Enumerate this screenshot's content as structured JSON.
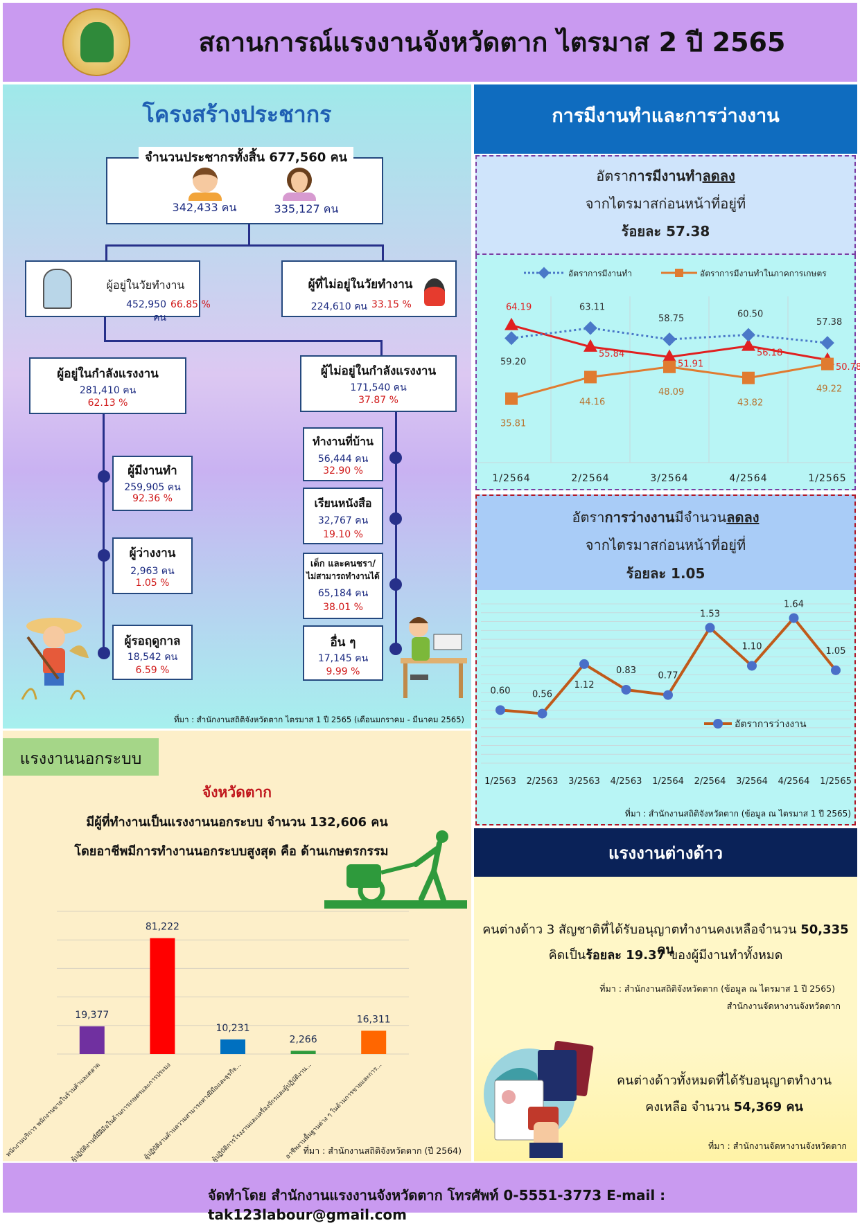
{
  "header": {
    "title": "สถานการณ์แรงงานจังหวัดตาก ไตรมาส 2 ปี 2565"
  },
  "population": {
    "title": "โครงสร้างประชากร",
    "total": "จำนวนประชากรทั้งสิ้น 677,560 คน",
    "male": "342,433 คน",
    "female": "335,127 คน",
    "working_age": {
      "label": "ผู้อยู่ในวัยทำงาน",
      "num": "452,950 คน",
      "pct": "66.85 %"
    },
    "non_working_age": {
      "label": "ผู้ที่ไม่อยู่ในวัยทำงาน",
      "num": "224,610 คน",
      "pct": "33.15 %"
    },
    "in_labour_force": {
      "label": "ผู้อยู่ในกำลังแรงงาน",
      "num": "281,410 คน",
      "pct": "62.13 %"
    },
    "not_in_labour_force": {
      "label": "ผู้ไม่อยู่ในกำลังแรงงาน",
      "num": "171,540 คน",
      "pct": "37.87 %"
    },
    "employed": {
      "label": "ผู้มีงานทำ",
      "num": "259,905 คน",
      "pct": "92.36 %"
    },
    "unemployed": {
      "label": "ผู้ว่างงาน",
      "num": "2,963 คน",
      "pct": "1.05 %"
    },
    "seasonal": {
      "label": "ผู้รอฤดูกาล",
      "num": "18,542 คน",
      "pct": "6.59 %"
    },
    "housework": {
      "label": "ทำงานที่บ้าน",
      "num": "56,444 คน",
      "pct": "32.90 %"
    },
    "studying": {
      "label": "เรียนหนังสือ",
      "num": "32,767 คน",
      "pct": "19.10 %"
    },
    "children_elderly": {
      "label1": "เด็ก และคนชรา/",
      "label2": "ไม่สามารถทำงานได้",
      "num": "65,184 คน",
      "pct": "38.01 %"
    },
    "others": {
      "label": "อื่น ๆ",
      "num": "17,145 คน",
      "pct": "9.99 %"
    },
    "source": "ที่มา : สำนักงานสถิติจังหวัดตาก ไตรมาส 1 ปี 2565 (เดือนมกราคม - มีนาคม 2565)"
  },
  "employment": {
    "title": "การมีงานทำและการว่างงาน",
    "emp_rate": {
      "line1_pre": "อัตรา",
      "line1_bold": "การมีงานทำ",
      "line1_under": "ลดลง",
      "line2": "จากไตรมาสก่อนหน้าที่อยู่ที่",
      "line3": "ร้อยละ 57.38"
    },
    "unemp_rate": {
      "line1_pre": "อัตรา",
      "line1_bold": "การว่างงาน",
      "line1_mid": "มีจำนวน",
      "line1_under": "ลดลง",
      "line2": "จากไตรมาสก่อนหน้าที่อยู่ที่",
      "line3": "ร้อยละ 1.05"
    },
    "unemp_source": "ที่มา : สำนักงานสถิติจังหวัดตาก (ข้อมูล ณ ไตรมาส 1 ปี 2565)"
  },
  "informal": {
    "tag": "แรงงานนอกระบบ",
    "province": "จังหวัดตาก",
    "line1": "มีผู้ที่ทำงานเป็นแรงงานนอกระบบ จำนวน 132,606 คน",
    "line2": "โดยอาชีพมีการทำงานนอกระบบสูงสุด คือ ด้านเกษตรกรรม",
    "source": "ที่มา : สำนักงานสถิติจังหวัดตาก (ปี 2564)"
  },
  "foreign": {
    "title": "แรงงานต่างด้าว",
    "line1_pre": "คนต่างด้าว 3 สัญชาติที่ได้รับอนุญาตทำงานคงเหลือจำนวน ",
    "line1_bold": "50,335 คน",
    "line2_pre": "คิดเป็น",
    "line2_bold": "ร้อยละ 19.37",
    "line2_post": " ของผู้มีงานทำทั้งหมด",
    "source1": "ที่มา : สำนักงานสถิติจังหวัดตาก (ข้อมูล ณ ไตรมาส 1 ปี 2565)",
    "source2": "สำนักงานจัดหางานจังหวัดตาก",
    "total_line1": "คนต่างด้าวทั้งหมดที่ได้รับอนุญาตทำงาน",
    "total_line2_pre": "คงเหลือ จำนวน ",
    "total_line2_bold": "54,369 คน",
    "source3": "ที่มา : สำนักงานจัดหางานจังหวัดตาก"
  },
  "footer": {
    "text": "จัดทำโดย สำนักงานแรงงานจังหวัดตาก โทรศัพท์ 0-5551-3773 E-mail : tak123labour@gmail.com"
  },
  "chart_data": [
    {
      "type": "line",
      "categories": [
        "1/2564",
        "2/2564",
        "3/2564",
        "4/2564",
        "1/2565"
      ],
      "series": [
        {
          "name": "อัตราการมีงานทำ",
          "values": [
            59.2,
            63.11,
            58.75,
            60.5,
            57.38
          ],
          "color": "#4a78c8"
        },
        {
          "name": "อัตราการมีงานทำในภาคการเกษตร",
          "values": [
            35.81,
            44.16,
            48.09,
            43.82,
            49.22
          ],
          "color": "#e07b30"
        },
        {
          "name": "",
          "values": [
            64.19,
            55.84,
            51.91,
            56.18,
            50.78
          ],
          "color": "#e02020"
        }
      ],
      "legend": "top"
    },
    {
      "type": "line",
      "categories": [
        "1/2563",
        "2/2563",
        "3/2563",
        "4/2563",
        "1/2564",
        "2/2564",
        "3/2564",
        "4/2564",
        "1/2565"
      ],
      "series": [
        {
          "name": "อัตราการว่างงาน",
          "values": [
            0.6,
            0.56,
            1.12,
            0.83,
            0.77,
            1.53,
            1.1,
            1.64,
            1.05
          ],
          "color": "#c05a1a"
        }
      ],
      "grid": true,
      "legend": "right"
    },
    {
      "type": "bar",
      "categories": [
        "พนักงานบริการ พนักงานขายในร้านค้าและตลาด",
        "ผู้ปฏิบัติงานที่มีฝีมือในด้านการเกษตรและการประมง",
        "ผู้ปฏิบัติงานด้านความสามารถทางฝีมือและธุรกิจ...",
        "ผู้ปฏิบัติการโรงงานและเครื่องจักรและผู้ปฏิบัติงาน...",
        "อาชีพงานพื้นฐานต่าง ๆ ในด้านการขายและการ..."
      ],
      "values": [
        19377,
        81222,
        10231,
        2266,
        16311
      ],
      "value_labels": [
        "19,377",
        "81,222",
        "10,231",
        "2,266",
        "16,311"
      ],
      "colors": [
        "#7030a0",
        "#ff0000",
        "#0070c0",
        "#2e9a3c",
        "#ff6600"
      ],
      "ylim": [
        0,
        100000
      ],
      "grid": true
    }
  ]
}
